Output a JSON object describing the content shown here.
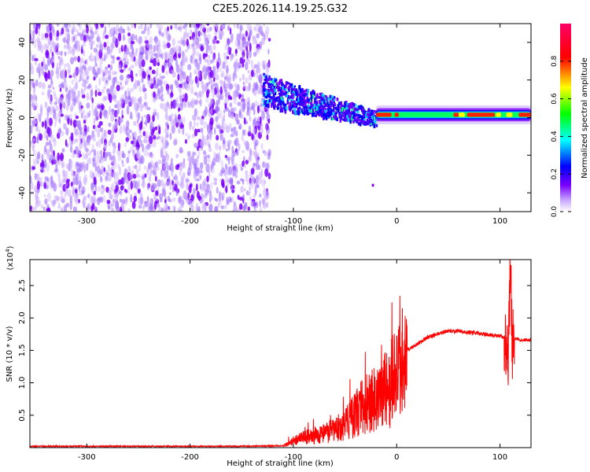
{
  "title": "C2E5.2026.114.19.25.G32",
  "chart_data": [
    {
      "type": "heatmap",
      "xlabel": "Height of straight line (km)",
      "ylabel": "Frequency (Hz)",
      "xlim": [
        -355,
        130
      ],
      "ylim": [
        -50,
        50
      ],
      "xticks": [
        -300,
        -200,
        -100,
        0,
        100
      ],
      "yticks": [
        -40,
        -20,
        0,
        20,
        40
      ],
      "colorbar": {
        "label": "Normalized spectral amplitude",
        "range": [
          0,
          1
        ],
        "ticks": [
          "0.0",
          "0.2",
          "0.4",
          "0.6",
          "0.8"
        ],
        "colormap": [
          "#ffffff",
          "#7b00ff",
          "#0000ff",
          "#00ffff",
          "#00ff00",
          "#ffff00",
          "#ff0000",
          "#ff0066"
        ]
      },
      "regions": [
        {
          "x_range": [
            -355,
            -123
          ],
          "freq_range": [
            -50,
            50
          ],
          "amplitude": 0.1
        },
        {
          "x_range": [
            -130,
            -20
          ],
          "freq_center_start": 15,
          "freq_center_end": 0,
          "amplitude": 0.3
        },
        {
          "x_range": [
            -20,
            130
          ],
          "freq_center": 1.5,
          "amplitude": 0.8
        }
      ],
      "grid": false
    },
    {
      "type": "line",
      "xlabel": "Height of straight line (km)",
      "ylabel": "SNR (10 * v/v)",
      "y_multiplier": "(x10^4)",
      "xlim": [
        -355,
        130
      ],
      "ylim": [
        0,
        2.9
      ],
      "xticks": [
        -300,
        -200,
        -100,
        0,
        100
      ],
      "yticks": [
        "0.5",
        "1.0",
        "1.5",
        "2.0",
        "2.5"
      ],
      "color": "#ff0000",
      "series": [
        {
          "x": [
            -355,
            -300,
            -250,
            -200,
            -150,
            -110,
            -100,
            -90,
            -80,
            -70,
            -60,
            -50,
            -40,
            -30,
            -20,
            -10,
            0,
            10,
            20,
            30,
            40,
            50,
            60,
            70,
            80,
            90,
            100,
            105,
            108,
            110,
            112,
            115,
            120,
            130
          ],
          "y": [
            0.02,
            0.02,
            0.02,
            0.02,
            0.02,
            0.03,
            0.12,
            0.18,
            0.22,
            0.26,
            0.32,
            0.42,
            0.6,
            0.8,
            0.9,
            1.05,
            1.3,
            1.5,
            1.6,
            1.7,
            1.76,
            1.8,
            1.79,
            1.78,
            1.76,
            1.74,
            1.72,
            1.7,
            1.5,
            2.8,
            1.6,
            1.68,
            1.66,
            1.66
          ]
        }
      ],
      "grid": false
    }
  ]
}
